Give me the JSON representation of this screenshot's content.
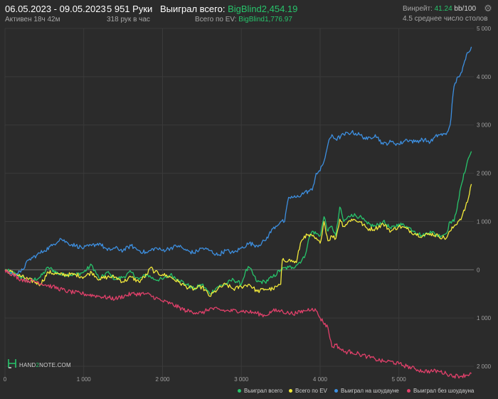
{
  "header": {
    "date_range": "06.05.2023 - 09.05.2023",
    "active": "Активен 18ч 42м",
    "hands": "5 951 Руки",
    "hands_per_hour": "318 рук в час",
    "won_label": "Выиграл всего: ",
    "won_value": "BigBlind2,454.19",
    "ev_label": "Всего по EV: ",
    "ev_value": "BigBlind1,776.97",
    "winrate_label": "Винрейт: ",
    "winrate_value": "41.24",
    "winrate_per": " bb/100",
    "tables": "4.5 среднее число столов"
  },
  "logo": {
    "prefix": "HAND",
    "two": "2",
    "suffix": "NOTE.COM"
  },
  "colors": {
    "background": "#2b2b2b",
    "grid": "#3a3a3a",
    "zero_line": "#6a6a6a",
    "won": "#27c46b",
    "ev": "#f2e93a",
    "showdown": "#3d8fe0",
    "no_showdown": "#e0406a"
  },
  "chart_data": {
    "type": "line",
    "xlim": [
      0,
      5951
    ],
    "ylim": [
      -2250,
      5000
    ],
    "x_ticks": [
      0,
      1000,
      2000,
      3000,
      4000,
      5000
    ],
    "x_tick_labels": [
      "0",
      "1 000",
      "2 000",
      "3 000",
      "4 000",
      "5 000"
    ],
    "y_ticks": [
      5000,
      4000,
      3000,
      2000,
      1000,
      0,
      -1000,
      -2000
    ],
    "y_tick_labels": [
      "5 000",
      "4 000",
      "3 000",
      "2 000",
      "1 000",
      "0",
      "1 000",
      "2 000"
    ],
    "grid": true,
    "legend_position": "bottom-right",
    "series": [
      {
        "name": "Выиграл всего",
        "color": "#27c46b",
        "points": [
          [
            0,
            0
          ],
          [
            150,
            -100
          ],
          [
            300,
            -250
          ],
          [
            450,
            -150
          ],
          [
            550,
            50
          ],
          [
            700,
            -100
          ],
          [
            900,
            -100
          ],
          [
            1000,
            -50
          ],
          [
            1100,
            100
          ],
          [
            1200,
            -200
          ],
          [
            1300,
            -50
          ],
          [
            1400,
            -200
          ],
          [
            1500,
            -150
          ],
          [
            1600,
            -50
          ],
          [
            1700,
            -200
          ],
          [
            1800,
            -100
          ],
          [
            1900,
            -200
          ],
          [
            2000,
            -200
          ],
          [
            2100,
            -100
          ],
          [
            2200,
            -200
          ],
          [
            2300,
            -300
          ],
          [
            2400,
            -400
          ],
          [
            2500,
            -300
          ],
          [
            2600,
            -500
          ],
          [
            2700,
            -350
          ],
          [
            2800,
            -300
          ],
          [
            2900,
            -200
          ],
          [
            3000,
            -300
          ],
          [
            3050,
            -50
          ],
          [
            3100,
            50
          ],
          [
            3200,
            -250
          ],
          [
            3300,
            -250
          ],
          [
            3400,
            -150
          ],
          [
            3500,
            0
          ],
          [
            3600,
            50
          ],
          [
            3650,
            50
          ],
          [
            3700,
            100
          ],
          [
            3800,
            250
          ],
          [
            3850,
            600
          ],
          [
            3900,
            800
          ],
          [
            4000,
            700
          ],
          [
            4050,
            1100
          ],
          [
            4100,
            800
          ],
          [
            4150,
            900
          ],
          [
            4200,
            700
          ],
          [
            4250,
            1300
          ],
          [
            4300,
            1000
          ],
          [
            4400,
            1150
          ],
          [
            4500,
            1100
          ],
          [
            4600,
            950
          ],
          [
            4700,
            900
          ],
          [
            4800,
            1000
          ],
          [
            4900,
            850
          ],
          [
            5000,
            950
          ],
          [
            5100,
            900
          ],
          [
            5200,
            800
          ],
          [
            5300,
            700
          ],
          [
            5400,
            800
          ],
          [
            5500,
            700
          ],
          [
            5600,
            750
          ],
          [
            5650,
            1000
          ],
          [
            5700,
            1000
          ],
          [
            5750,
            1400
          ],
          [
            5800,
            1800
          ],
          [
            5870,
            2250
          ],
          [
            5920,
            2454
          ]
        ]
      },
      {
        "name": "Всего по EV",
        "color": "#f2e93a",
        "points": [
          [
            0,
            0
          ],
          [
            150,
            -100
          ],
          [
            300,
            -200
          ],
          [
            450,
            -300
          ],
          [
            550,
            -50
          ],
          [
            700,
            -100
          ],
          [
            900,
            -100
          ],
          [
            1000,
            -150
          ],
          [
            1100,
            -50
          ],
          [
            1200,
            -200
          ],
          [
            1300,
            -150
          ],
          [
            1400,
            -150
          ],
          [
            1500,
            -250
          ],
          [
            1600,
            -150
          ],
          [
            1700,
            -250
          ],
          [
            1800,
            -100
          ],
          [
            1850,
            50
          ],
          [
            1900,
            -50
          ],
          [
            2000,
            -100
          ],
          [
            2100,
            -150
          ],
          [
            2200,
            -250
          ],
          [
            2300,
            -350
          ],
          [
            2400,
            -400
          ],
          [
            2500,
            -350
          ],
          [
            2600,
            -550
          ],
          [
            2700,
            -400
          ],
          [
            2800,
            -300
          ],
          [
            2900,
            -400
          ],
          [
            3000,
            -350
          ],
          [
            3100,
            -300
          ],
          [
            3200,
            -450
          ],
          [
            3300,
            -400
          ],
          [
            3400,
            -400
          ],
          [
            3450,
            -350
          ],
          [
            3500,
            -300
          ],
          [
            3520,
            200
          ],
          [
            3600,
            200
          ],
          [
            3700,
            150
          ],
          [
            3750,
            550
          ],
          [
            3800,
            700
          ],
          [
            3900,
            700
          ],
          [
            4000,
            550
          ],
          [
            4050,
            1000
          ],
          [
            4100,
            600
          ],
          [
            4150,
            700
          ],
          [
            4200,
            650
          ],
          [
            4250,
            1050
          ],
          [
            4300,
            900
          ],
          [
            4400,
            1050
          ],
          [
            4500,
            1000
          ],
          [
            4600,
            850
          ],
          [
            4700,
            850
          ],
          [
            4800,
            950
          ],
          [
            4900,
            800
          ],
          [
            5000,
            900
          ],
          [
            5100,
            850
          ],
          [
            5200,
            750
          ],
          [
            5300,
            700
          ],
          [
            5400,
            750
          ],
          [
            5500,
            700
          ],
          [
            5600,
            650
          ],
          [
            5650,
            800
          ],
          [
            5700,
            900
          ],
          [
            5750,
            1000
          ],
          [
            5800,
            1100
          ],
          [
            5870,
            1400
          ],
          [
            5920,
            1776
          ]
        ]
      },
      {
        "name": "Выиграл на шоудауне",
        "color": "#3d8fe0",
        "points": [
          [
            0,
            0
          ],
          [
            100,
            -100
          ],
          [
            200,
            -50
          ],
          [
            300,
            200
          ],
          [
            400,
            300
          ],
          [
            500,
            400
          ],
          [
            600,
            500
          ],
          [
            700,
            650
          ],
          [
            800,
            550
          ],
          [
            900,
            500
          ],
          [
            1000,
            450
          ],
          [
            1100,
            500
          ],
          [
            1200,
            550
          ],
          [
            1300,
            400
          ],
          [
            1400,
            450
          ],
          [
            1500,
            400
          ],
          [
            1600,
            500
          ],
          [
            1700,
            400
          ],
          [
            1800,
            350
          ],
          [
            1900,
            450
          ],
          [
            2000,
            400
          ],
          [
            2100,
            450
          ],
          [
            2200,
            500
          ],
          [
            2300,
            400
          ],
          [
            2400,
            350
          ],
          [
            2500,
            450
          ],
          [
            2600,
            400
          ],
          [
            2700,
            300
          ],
          [
            2800,
            400
          ],
          [
            2900,
            350
          ],
          [
            3000,
            450
          ],
          [
            3100,
            550
          ],
          [
            3200,
            500
          ],
          [
            3300,
            600
          ],
          [
            3400,
            850
          ],
          [
            3500,
            1000
          ],
          [
            3550,
            1000
          ],
          [
            3600,
            1500
          ],
          [
            3700,
            1500
          ],
          [
            3800,
            1600
          ],
          [
            3900,
            1650
          ],
          [
            3950,
            2000
          ],
          [
            4000,
            2050
          ],
          [
            4050,
            2250
          ],
          [
            4100,
            2600
          ],
          [
            4150,
            2800
          ],
          [
            4200,
            2700
          ],
          [
            4300,
            2800
          ],
          [
            4400,
            2850
          ],
          [
            4500,
            2800
          ],
          [
            4600,
            2700
          ],
          [
            4700,
            2800
          ],
          [
            4800,
            2600
          ],
          [
            4900,
            2650
          ],
          [
            5000,
            2600
          ],
          [
            5100,
            2700
          ],
          [
            5200,
            2650
          ],
          [
            5300,
            2700
          ],
          [
            5400,
            2650
          ],
          [
            5500,
            2800
          ],
          [
            5600,
            2800
          ],
          [
            5650,
            3000
          ],
          [
            5700,
            3800
          ],
          [
            5750,
            4000
          ],
          [
            5800,
            4100
          ],
          [
            5870,
            4500
          ],
          [
            5920,
            4620
          ]
        ]
      },
      {
        "name": "Выиграл без шоудауна",
        "color": "#e0406a",
        "points": [
          [
            0,
            0
          ],
          [
            200,
            -200
          ],
          [
            400,
            -250
          ],
          [
            600,
            -350
          ],
          [
            800,
            -450
          ],
          [
            1000,
            -500
          ],
          [
            1200,
            -550
          ],
          [
            1400,
            -600
          ],
          [
            1600,
            -500
          ],
          [
            1800,
            -500
          ],
          [
            2000,
            -650
          ],
          [
            2100,
            -700
          ],
          [
            2300,
            -850
          ],
          [
            2500,
            -900
          ],
          [
            2600,
            -800
          ],
          [
            2800,
            -850
          ],
          [
            3000,
            -850
          ],
          [
            3200,
            -900
          ],
          [
            3300,
            -950
          ],
          [
            3400,
            -850
          ],
          [
            3500,
            -850
          ],
          [
            3600,
            -900
          ],
          [
            3700,
            -900
          ],
          [
            3800,
            -850
          ],
          [
            3900,
            -800
          ],
          [
            3950,
            -850
          ],
          [
            4000,
            -1000
          ],
          [
            4100,
            -1200
          ],
          [
            4150,
            -1600
          ],
          [
            4200,
            -1550
          ],
          [
            4300,
            -1700
          ],
          [
            4400,
            -1700
          ],
          [
            4500,
            -1750
          ],
          [
            4600,
            -1800
          ],
          [
            4700,
            -1850
          ],
          [
            4800,
            -1900
          ],
          [
            4900,
            -1900
          ],
          [
            5000,
            -1950
          ],
          [
            5100,
            -2000
          ],
          [
            5200,
            -2050
          ],
          [
            5300,
            -2100
          ],
          [
            5400,
            -2100
          ],
          [
            5500,
            -2100
          ],
          [
            5600,
            -2150
          ],
          [
            5700,
            -2200
          ],
          [
            5800,
            -2200
          ],
          [
            5920,
            -2150
          ]
        ]
      }
    ]
  }
}
